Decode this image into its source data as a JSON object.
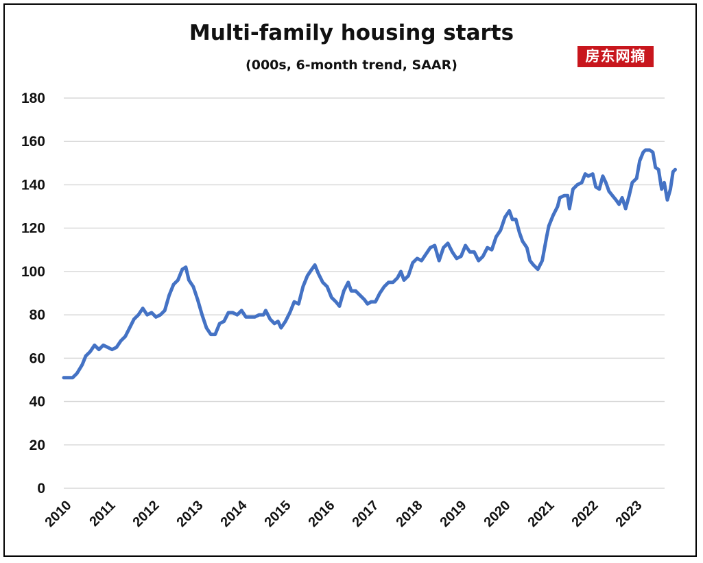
{
  "watermark": "房东网摘",
  "colors": {
    "line": "#4472c4",
    "grid": "#d9d9d9",
    "text": "#111111",
    "watermark_bg": "#c8161d"
  },
  "chart_data": {
    "type": "line",
    "title": "Multi-family housing starts",
    "subtitle": "(000s, 6-month trend, SAAR)",
    "xlabel": "",
    "ylabel": "",
    "ylim": [
      0,
      180
    ],
    "yticks": [
      0,
      20,
      40,
      60,
      80,
      100,
      120,
      140,
      160,
      180
    ],
    "xlim": [
      2010.0,
      2023.75
    ],
    "xticks": [
      "2010",
      "2011",
      "2012",
      "2013",
      "2014",
      "2015",
      "2016",
      "2017",
      "2018",
      "2019",
      "2020",
      "2021",
      "2022",
      "2023"
    ],
    "grid": true,
    "legend": "none",
    "series": [
      {
        "points": [
          [
            2010.0,
            51
          ],
          [
            2010.1,
            51
          ],
          [
            2010.2,
            51
          ],
          [
            2010.3,
            53
          ],
          [
            2010.42,
            57
          ],
          [
            2010.5,
            61
          ],
          [
            2010.6,
            63
          ],
          [
            2010.7,
            66
          ],
          [
            2010.8,
            64
          ],
          [
            2010.9,
            66
          ],
          [
            2011.0,
            65
          ],
          [
            2011.1,
            64
          ],
          [
            2011.2,
            65
          ],
          [
            2011.3,
            68
          ],
          [
            2011.4,
            70
          ],
          [
            2011.5,
            74
          ],
          [
            2011.6,
            78
          ],
          [
            2011.7,
            80
          ],
          [
            2011.8,
            83
          ],
          [
            2011.9,
            80
          ],
          [
            2012.0,
            81
          ],
          [
            2012.1,
            79
          ],
          [
            2012.2,
            80
          ],
          [
            2012.3,
            82
          ],
          [
            2012.4,
            89
          ],
          [
            2012.5,
            94
          ],
          [
            2012.6,
            96
          ],
          [
            2012.7,
            101
          ],
          [
            2012.78,
            102
          ],
          [
            2012.85,
            96
          ],
          [
            2012.95,
            93
          ],
          [
            2013.05,
            87
          ],
          [
            2013.15,
            80
          ],
          [
            2013.25,
            74
          ],
          [
            2013.35,
            71
          ],
          [
            2013.45,
            71
          ],
          [
            2013.55,
            76
          ],
          [
            2013.65,
            77
          ],
          [
            2013.75,
            81
          ],
          [
            2013.85,
            81
          ],
          [
            2013.95,
            80
          ],
          [
            2014.05,
            82
          ],
          [
            2014.15,
            79
          ],
          [
            2014.25,
            79
          ],
          [
            2014.35,
            79
          ],
          [
            2014.45,
            80
          ],
          [
            2014.55,
            80
          ],
          [
            2014.6,
            82
          ],
          [
            2014.7,
            78
          ],
          [
            2014.8,
            76
          ],
          [
            2014.88,
            77
          ],
          [
            2014.95,
            74
          ],
          [
            2015.05,
            77
          ],
          [
            2015.15,
            81
          ],
          [
            2015.25,
            86
          ],
          [
            2015.35,
            85
          ],
          [
            2015.45,
            93
          ],
          [
            2015.55,
            98
          ],
          [
            2015.65,
            101
          ],
          [
            2015.72,
            103
          ],
          [
            2015.8,
            99
          ],
          [
            2015.9,
            95
          ],
          [
            2016.0,
            93
          ],
          [
            2016.1,
            88
          ],
          [
            2016.2,
            86
          ],
          [
            2016.28,
            84
          ],
          [
            2016.38,
            91
          ],
          [
            2016.48,
            95
          ],
          [
            2016.55,
            91
          ],
          [
            2016.65,
            91
          ],
          [
            2016.75,
            89
          ],
          [
            2016.85,
            87
          ],
          [
            2016.92,
            85
          ],
          [
            2017.0,
            86
          ],
          [
            2017.1,
            86
          ],
          [
            2017.2,
            90
          ],
          [
            2017.3,
            93
          ],
          [
            2017.4,
            95
          ],
          [
            2017.5,
            95
          ],
          [
            2017.6,
            97
          ],
          [
            2017.68,
            100
          ],
          [
            2017.75,
            96
          ],
          [
            2017.85,
            98
          ],
          [
            2017.95,
            104
          ],
          [
            2018.05,
            106
          ],
          [
            2018.15,
            105
          ],
          [
            2018.25,
            108
          ],
          [
            2018.35,
            111
          ],
          [
            2018.45,
            112
          ],
          [
            2018.55,
            105
          ],
          [
            2018.65,
            111
          ],
          [
            2018.75,
            113
          ],
          [
            2018.85,
            109
          ],
          [
            2018.95,
            106
          ],
          [
            2019.05,
            107
          ],
          [
            2019.15,
            112
          ],
          [
            2019.25,
            109
          ],
          [
            2019.35,
            109
          ],
          [
            2019.45,
            105
          ],
          [
            2019.55,
            107
          ],
          [
            2019.65,
            111
          ],
          [
            2019.75,
            110
          ],
          [
            2019.85,
            116
          ],
          [
            2019.95,
            119
          ],
          [
            2020.05,
            125
          ],
          [
            2020.15,
            128
          ],
          [
            2020.22,
            124
          ],
          [
            2020.3,
            124
          ],
          [
            2020.38,
            118
          ],
          [
            2020.45,
            114
          ],
          [
            2020.55,
            111
          ],
          [
            2020.62,
            105
          ],
          [
            2020.7,
            103
          ],
          [
            2020.8,
            101
          ],
          [
            2020.9,
            105
          ],
          [
            2021.0,
            116
          ],
          [
            2021.05,
            121
          ],
          [
            2021.15,
            126
          ],
          [
            2021.25,
            130
          ],
          [
            2021.3,
            134
          ],
          [
            2021.4,
            135
          ],
          [
            2021.48,
            135
          ],
          [
            2021.52,
            129
          ],
          [
            2021.6,
            138
          ],
          [
            2021.7,
            140
          ],
          [
            2021.8,
            141
          ],
          [
            2021.88,
            145
          ],
          [
            2021.95,
            144
          ],
          [
            2022.05,
            145
          ],
          [
            2022.12,
            139
          ],
          [
            2022.2,
            138
          ],
          [
            2022.28,
            144
          ],
          [
            2022.35,
            141
          ],
          [
            2022.42,
            137
          ],
          [
            2022.5,
            135
          ],
          [
            2022.58,
            133
          ],
          [
            2022.65,
            131
          ],
          [
            2022.72,
            134
          ],
          [
            2022.8,
            129
          ],
          [
            2022.88,
            135
          ],
          [
            2022.95,
            141
          ],
          [
            2023.05,
            143
          ],
          [
            2023.12,
            151
          ],
          [
            2023.2,
            155
          ],
          [
            2023.25,
            156
          ],
          [
            2023.35,
            156
          ],
          [
            2023.42,
            155
          ],
          [
            2023.48,
            148
          ],
          [
            2023.55,
            147
          ],
          [
            2023.62,
            138
          ],
          [
            2023.68,
            141
          ],
          [
            2023.75,
            133
          ],
          [
            2023.82,
            138
          ],
          [
            2023.88,
            146
          ],
          [
            2023.93,
            147
          ]
        ]
      }
    ]
  }
}
